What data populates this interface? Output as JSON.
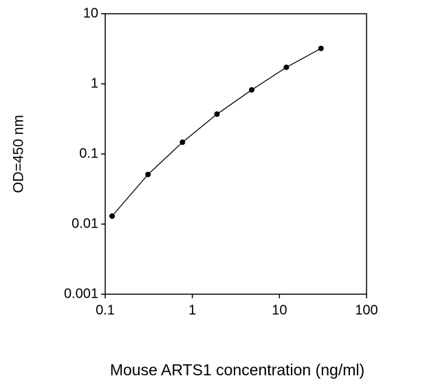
{
  "chart_data": {
    "type": "line",
    "xlabel": "Mouse ARTS1 concentration (ng/ml)",
    "ylabel": "OD=450 nm",
    "x": [
      0.12,
      0.31,
      0.77,
      1.92,
      4.8,
      12,
      30
    ],
    "series": [
      {
        "color": "#000000",
        "values": [
          0.013,
          0.051,
          0.147,
          0.37,
          0.82,
          1.72,
          3.2
        ]
      }
    ],
    "xlim": [
      0.1,
      100
    ],
    "ylim": [
      0.001,
      10
    ],
    "xticks": [
      0.1,
      1,
      10,
      100
    ],
    "yticks": [
      0.001,
      0.01,
      0.1,
      1,
      10
    ],
    "xscale": "log",
    "yscale": "log",
    "grid": false
  }
}
